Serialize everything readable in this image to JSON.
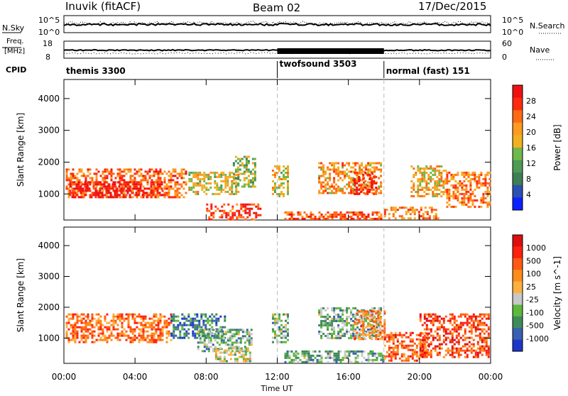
{
  "header": {
    "station": "Inuvik (fitACF)",
    "beam": "Beam 02",
    "date": "17/Dec/2015"
  },
  "top_panels": {
    "nsky_label": "N.Sky",
    "nsky_ticks": [
      "10^5",
      "10^0"
    ],
    "nsearch_label": "N.Search",
    "nsearch_ticks": [
      "10^5",
      "10^0"
    ],
    "freq_label_1": "Freq.",
    "freq_label_2": "[MHz]",
    "freq_ticks": [
      "18",
      "8"
    ],
    "nave_label": "Nave",
    "nave_ticks": [
      "60",
      "0"
    ],
    "cpid_label": "CPID",
    "cpid_segments": [
      {
        "name": "themis 3300",
        "start_hour": 0
      },
      {
        "name": "twofsound 3503",
        "start_hour": 12
      },
      {
        "name": "normal (fast) 151",
        "start_hour": 18
      }
    ]
  },
  "time_axis": {
    "label": "Time UT",
    "ticks": [
      "00:00",
      "04:00",
      "08:00",
      "12:00",
      "16:00",
      "20:00",
      "00:00"
    ]
  },
  "colors": {
    "power": [
      "#0a22ff",
      "#2b4fb3",
      "#3f7f53",
      "#4f9a55",
      "#70b84b",
      "#f0b020",
      "#ff9a20",
      "#ff6a14",
      "#ff2a10",
      "#ee1111"
    ],
    "velocity": [
      "#1b36c8",
      "#3a5fb0",
      "#3f8a5a",
      "#5db83e",
      "#c8c8c8",
      "#ffb040",
      "#ff8c1a",
      "#ff5a12",
      "#ff2010",
      "#dd0e0e"
    ]
  },
  "chart_data": [
    {
      "type": "heatmap",
      "title": "Power",
      "xlabel": "Time UT",
      "ylabel": "Slant Range [km]",
      "xlim": [
        0,
        24
      ],
      "ylim": [
        180,
        4600
      ],
      "yticks": [
        1000,
        2000,
        3000,
        4000
      ],
      "colorbar_label": "Power [dB]",
      "colorbar_ticks": [
        "28",
        "24",
        "20",
        "16",
        "12",
        "8",
        "4"
      ],
      "colorbar_range": [
        0,
        30
      ],
      "regions": [
        {
          "t0": 0.1,
          "t1": 6.9,
          "r0": 900,
          "r1": 1800,
          "level": 0.75
        },
        {
          "t0": 0.3,
          "t1": 5.5,
          "r0": 900,
          "r1": 1400,
          "level": 0.95
        },
        {
          "t0": 7.0,
          "t1": 9.8,
          "r0": 1000,
          "r1": 1700,
          "level": 0.55
        },
        {
          "t0": 8.0,
          "t1": 11.0,
          "r0": 200,
          "r1": 700,
          "level": 0.85
        },
        {
          "t0": 9.5,
          "t1": 10.8,
          "r0": 1200,
          "r1": 2200,
          "level": 0.45
        },
        {
          "t0": 11.7,
          "t1": 12.6,
          "r0": 900,
          "r1": 1900,
          "level": 0.55
        },
        {
          "t0": 12.4,
          "t1": 17.9,
          "r0": 200,
          "r1": 450,
          "level": 0.8
        },
        {
          "t0": 14.3,
          "t1": 17.8,
          "r0": 1000,
          "r1": 2000,
          "level": 0.65
        },
        {
          "t0": 16.3,
          "t1": 17.6,
          "r0": 1000,
          "r1": 1700,
          "level": 0.9
        },
        {
          "t0": 18.0,
          "t1": 21.0,
          "r0": 250,
          "r1": 600,
          "level": 0.7
        },
        {
          "t0": 19.5,
          "t1": 21.5,
          "r0": 900,
          "r1": 1900,
          "level": 0.6
        },
        {
          "t0": 21.5,
          "t1": 23.9,
          "r0": 600,
          "r1": 1700,
          "level": 0.7
        }
      ]
    },
    {
      "type": "heatmap",
      "title": "Velocity",
      "xlabel": "Time UT",
      "ylabel": "Slant Range [km]",
      "xlim": [
        0,
        24
      ],
      "ylim": [
        180,
        4600
      ],
      "yticks": [
        1000,
        2000,
        3000,
        4000
      ],
      "colorbar_label": "Velocity [m s^-1]",
      "colorbar_ticks": [
        "1000",
        "500",
        "100",
        "25",
        "-25",
        "-100",
        "-500",
        "-1000"
      ],
      "regions": [
        {
          "t0": 0.1,
          "t1": 6.0,
          "r0": 900,
          "r1": 1800,
          "level": 0.72
        },
        {
          "t0": 6.0,
          "t1": 9.0,
          "r0": 1000,
          "r1": 1800,
          "level": 0.2
        },
        {
          "t0": 7.5,
          "t1": 10.5,
          "r0": 600,
          "r1": 1300,
          "level": 0.35
        },
        {
          "t0": 8.5,
          "t1": 10.5,
          "r0": 250,
          "r1": 700,
          "level": 0.45
        },
        {
          "t0": 11.7,
          "t1": 12.6,
          "r0": 900,
          "r1": 1800,
          "level": 0.35
        },
        {
          "t0": 12.4,
          "t1": 18.0,
          "r0": 200,
          "r1": 600,
          "level": 0.33
        },
        {
          "t0": 14.3,
          "t1": 17.8,
          "r0": 1000,
          "r1": 2000,
          "level": 0.35
        },
        {
          "t0": 16.3,
          "t1": 18.0,
          "r0": 1000,
          "r1": 1900,
          "level": 0.65
        },
        {
          "t0": 18.0,
          "t1": 20.5,
          "r0": 300,
          "r1": 1200,
          "level": 0.75
        },
        {
          "t0": 20.0,
          "t1": 23.9,
          "r0": 400,
          "r1": 1800,
          "level": 0.8
        }
      ]
    }
  ]
}
